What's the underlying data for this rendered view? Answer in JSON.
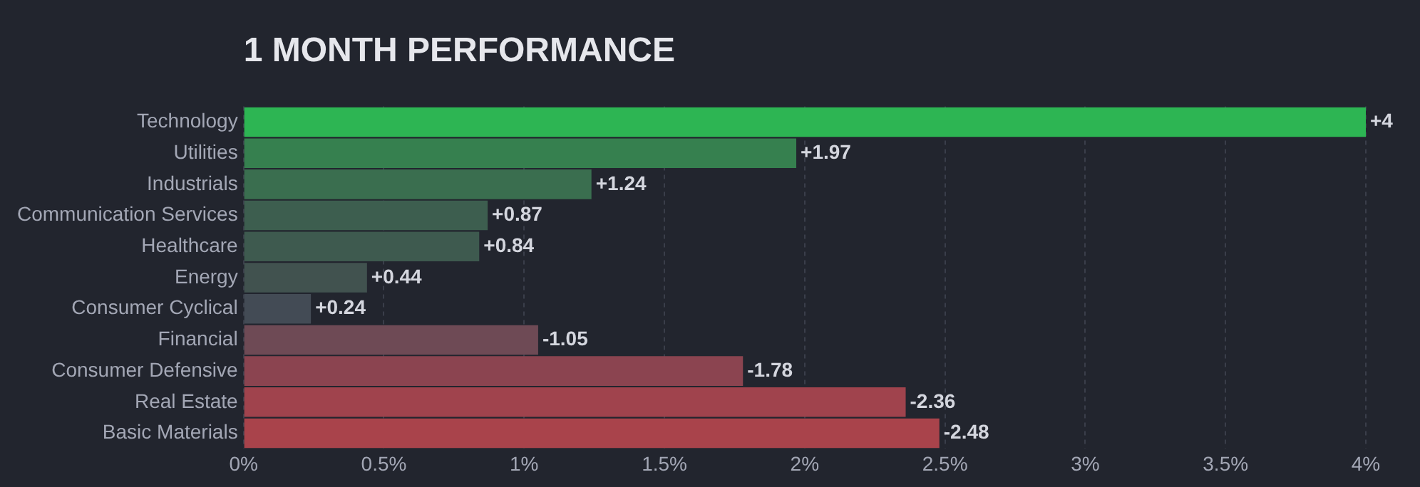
{
  "chart_data": {
    "type": "bar",
    "title": "1 MONTH PERFORMANCE",
    "orientation": "horizontal",
    "categories": [
      "Technology",
      "Utilities",
      "Industrials",
      "Communication Services",
      "Healthcare",
      "Energy",
      "Consumer Cyclical",
      "Financial",
      "Consumer Defensive",
      "Real Estate",
      "Basic Materials"
    ],
    "values": [
      4,
      1.97,
      1.24,
      0.87,
      0.84,
      0.44,
      0.24,
      -1.05,
      -1.78,
      -2.36,
      -2.48
    ],
    "base": [
      0,
      0,
      0,
      0,
      0,
      0,
      0,
      1.05,
      1.78,
      2.36,
      2.48
    ],
    "value_labels": [
      "+4",
      "+1.97",
      "+1.24",
      "+0.87",
      "+0.84",
      "+0.44",
      "+0.24",
      "-1.05",
      "-1.78",
      "-2.36",
      "-2.48"
    ],
    "colors": [
      "#2db553",
      "#36804f",
      "#3a6e4f",
      "#3d5e4f",
      "#3e5a4f",
      "#41524f",
      "#434b55",
      "#6e4a55",
      "#8b4450",
      "#a0434d",
      "#a9434b"
    ],
    "xlim": [
      0,
      4
    ],
    "xticks": [
      {
        "value": 0,
        "label": "0%"
      },
      {
        "value": 0.5,
        "label": "0.5%"
      },
      {
        "value": 1,
        "label": "1%"
      },
      {
        "value": 1.5,
        "label": "1.5%"
      },
      {
        "value": 2,
        "label": "2%"
      },
      {
        "value": 2.5,
        "label": "2.5%"
      },
      {
        "value": 3,
        "label": "3%"
      },
      {
        "value": 3.5,
        "label": "3.5%"
      },
      {
        "value": 4,
        "label": "4%"
      }
    ],
    "grid": "x"
  }
}
